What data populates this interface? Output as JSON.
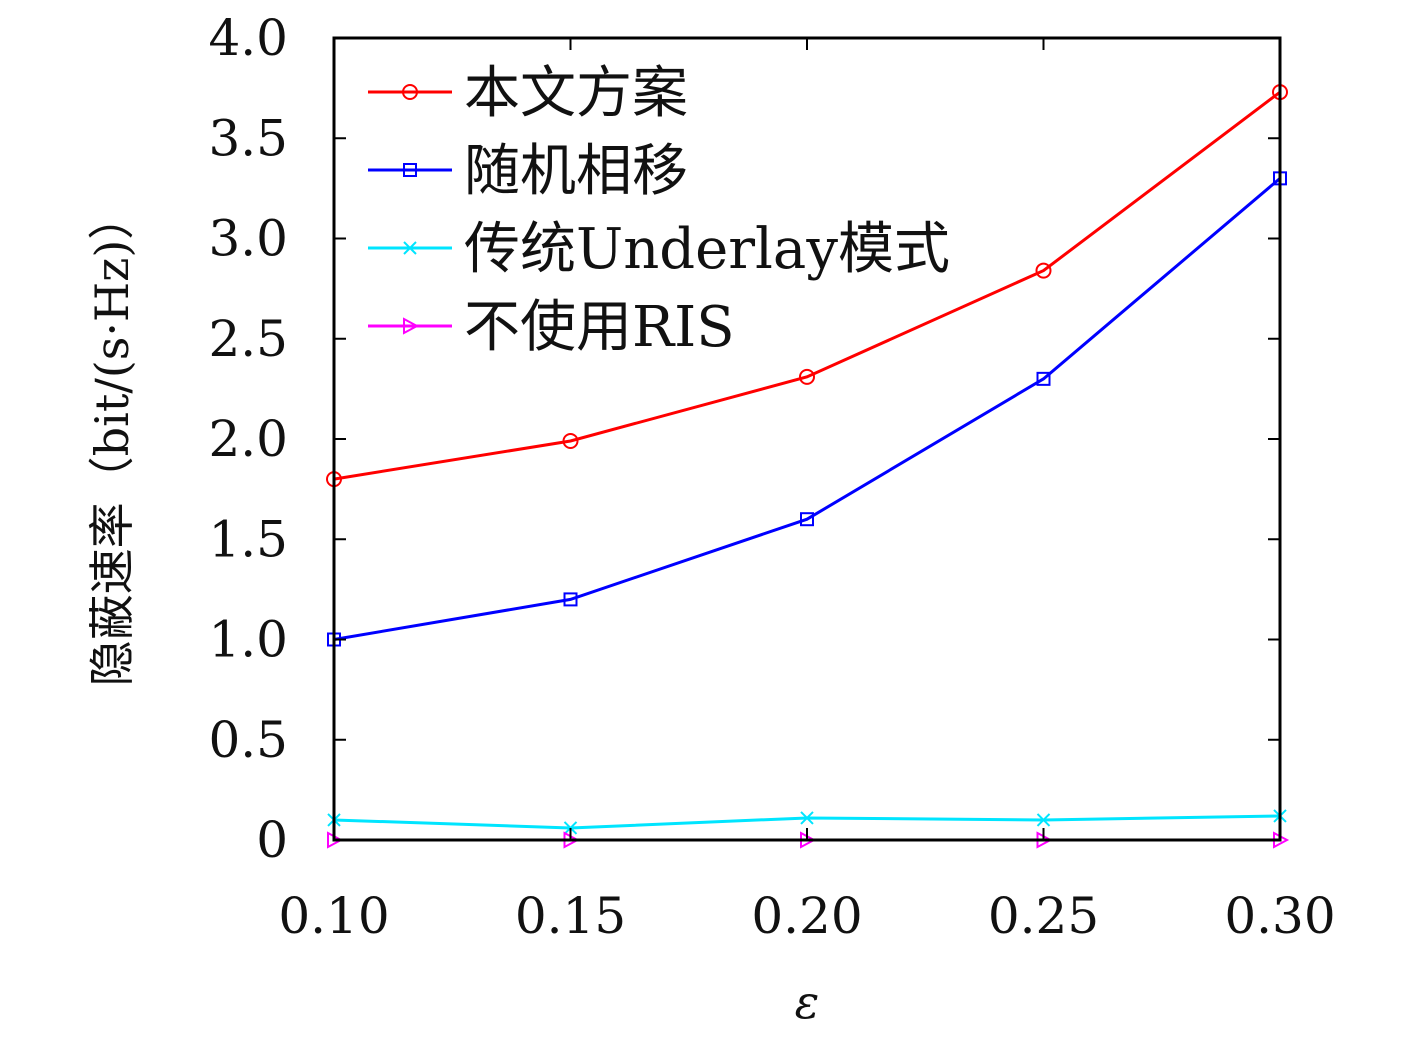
{
  "chart_data": {
    "type": "line",
    "xlabel": "ε",
    "ylabel": "隐蔽速率（bit/(s·Hz)）",
    "x": [
      0.1,
      0.15,
      0.2,
      0.25,
      0.3
    ],
    "x_tick_labels": [
      "0.10",
      "0.15",
      "0.20",
      "0.25",
      "0.30"
    ],
    "xlim": [
      0.1,
      0.3
    ],
    "ylim": [
      0,
      4.0
    ],
    "y_ticks": [
      0,
      0.5,
      1.0,
      1.5,
      2.0,
      2.5,
      3.0,
      3.5,
      4.0
    ],
    "y_tick_labels": [
      "0",
      "0.5",
      "1.0",
      "1.5",
      "2.0",
      "2.5",
      "3.0",
      "3.5",
      "4.0"
    ],
    "grid": false,
    "legend_position": "top-left",
    "series": [
      {
        "name": "本文方案",
        "color": "#ff0000",
        "marker": "circle",
        "values": [
          1.8,
          1.99,
          2.31,
          2.84,
          3.73
        ]
      },
      {
        "name": "随机相移",
        "color": "#0000ff",
        "marker": "square",
        "values": [
          1.0,
          1.2,
          1.6,
          2.3,
          3.3
        ]
      },
      {
        "name": "传统Underlay模式",
        "color": "#00e5ff",
        "marker": "x",
        "values": [
          0.1,
          0.06,
          0.11,
          0.1,
          0.12
        ]
      },
      {
        "name": "不使用RIS",
        "color": "#ff00ff",
        "marker": "triangle-right",
        "values": [
          0.0,
          0.0,
          0.0,
          0.0,
          0.0
        ]
      }
    ]
  }
}
